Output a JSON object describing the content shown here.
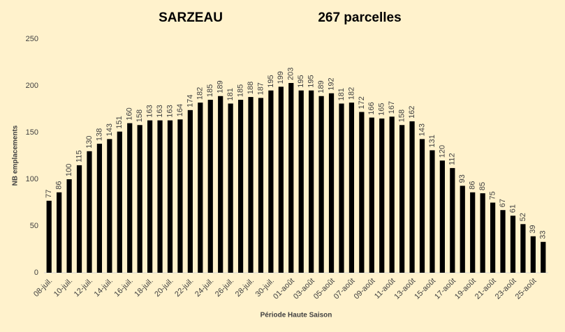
{
  "chart_data": {
    "type": "bar",
    "title": "SARZEAU",
    "subtitle": "267 parcelles",
    "x_label": "Période Haute Saison",
    "y_label": "NB emplacements",
    "categories": [
      "08-juil.",
      null,
      "10-juil.",
      null,
      "12-juil.",
      null,
      "14-juil.",
      null,
      "16-juil.",
      null,
      "18-juil.",
      null,
      "20-juil.",
      null,
      "22-juil.",
      null,
      "24-juil.",
      null,
      "26-juil.",
      null,
      "28-juil.",
      null,
      "30-juil.",
      null,
      "01-août",
      null,
      "03-août",
      null,
      "05-août",
      null,
      "07-août",
      null,
      "09-août",
      null,
      "11-août",
      null,
      "13-août",
      null,
      "15-août",
      null,
      "17-août",
      null,
      "19-août",
      null,
      "21-août",
      null,
      "23-août",
      null,
      "25-août",
      null
    ],
    "values": [
      77,
      86,
      100,
      115,
      130,
      138,
      143,
      151,
      160,
      158,
      163,
      163,
      163,
      164,
      174,
      182,
      185,
      189,
      181,
      185,
      188,
      187,
      195,
      199,
      203,
      195,
      195,
      189,
      192,
      181,
      182,
      172,
      166,
      165,
      167,
      158,
      162,
      143,
      131,
      120,
      112,
      93,
      86,
      85,
      75,
      67,
      61,
      52,
      39,
      33
    ],
    "color": "#000000",
    "ylim": [
      0,
      250
    ],
    "yticks": [
      0,
      50,
      100,
      150,
      200,
      250
    ],
    "grid": false
  }
}
